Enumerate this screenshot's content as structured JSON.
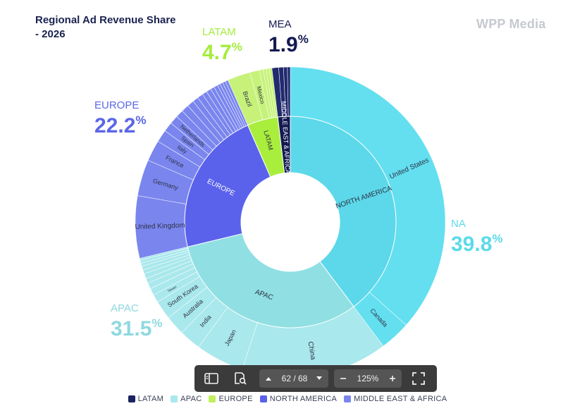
{
  "header": {
    "title": "Regional Ad Revenue Share - 2026",
    "brand": "WPP Media"
  },
  "chart_data": {
    "type": "sunburst",
    "regions": [
      {
        "name": "NORTH AMERICA",
        "label": "NA",
        "percent_text": "39.8%",
        "share": 39.8,
        "color": "#63dff0",
        "children": [
          {
            "name": "United States",
            "share": 36.6
          },
          {
            "name": "Canada",
            "share": 3.2
          }
        ]
      },
      {
        "name": "APAC",
        "label": "APAC",
        "percent_text": "31.5%",
        "share": 31.5,
        "color": "#a9e8ec",
        "children": [
          {
            "name": "China",
            "share": 14.8
          },
          {
            "name": "Japan",
            "share": 4.9
          },
          {
            "name": "India",
            "share": 2.2
          },
          {
            "name": "Australia",
            "share": 2.0
          },
          {
            "name": "South Korea",
            "share": 1.9
          },
          {
            "name": "Taiwan",
            "share": 0.8
          },
          {
            "name": "",
            "share": 0.7
          },
          {
            "name": "",
            "share": 0.6
          },
          {
            "name": "",
            "share": 0.5
          },
          {
            "name": "",
            "share": 0.5
          },
          {
            "name": "",
            "share": 0.4
          },
          {
            "name": "",
            "share": 0.4
          },
          {
            "name": "",
            "share": 0.3
          },
          {
            "name": "",
            "share": 0.3
          },
          {
            "name": "",
            "share": 0.2
          }
        ]
      },
      {
        "name": "EUROPE",
        "label": "EUROPE",
        "percent_text": "22.2%",
        "share": 22.2,
        "color": "#7a86ee",
        "children": [
          {
            "name": "United Kingdom",
            "share": 6.5
          },
          {
            "name": "Germany",
            "share": 3.8
          },
          {
            "name": "France",
            "share": 2.2
          },
          {
            "name": "Italy",
            "share": 1.3
          },
          {
            "name": "Spain",
            "share": 1.0
          },
          {
            "name": "Netherlands",
            "share": 0.9
          },
          {
            "name": "",
            "share": 0.8
          },
          {
            "name": "",
            "share": 0.8
          },
          {
            "name": "",
            "share": 0.7
          },
          {
            "name": "",
            "share": 0.6
          },
          {
            "name": "",
            "share": 0.6
          },
          {
            "name": "",
            "share": 0.5
          },
          {
            "name": "",
            "share": 0.5
          },
          {
            "name": "",
            "share": 0.4
          },
          {
            "name": "",
            "share": 0.4
          },
          {
            "name": "",
            "share": 0.3
          },
          {
            "name": "",
            "share": 0.3
          },
          {
            "name": "",
            "share": 0.3
          },
          {
            "name": "",
            "share": 0.3
          }
        ]
      },
      {
        "name": "LATAM",
        "label": "LATAM",
        "percent_text": "4.7%",
        "share": 4.7,
        "color": "#c6f27a",
        "children": [
          {
            "name": "Brazil",
            "share": 2.4
          },
          {
            "name": "Mexico",
            "share": 1.0
          },
          {
            "name": "",
            "share": 0.4
          },
          {
            "name": "",
            "share": 0.3
          },
          {
            "name": "",
            "share": 0.3
          },
          {
            "name": "",
            "share": 0.3
          }
        ]
      },
      {
        "name": "MIDDLE EAST & AFRICA",
        "label": "MEA",
        "percent_text": "1.9%",
        "share": 1.9,
        "color": "#222a6e",
        "children": [
          {
            "name": "",
            "share": 0.7
          },
          {
            "name": "",
            "share": 0.5
          },
          {
            "name": "",
            "share": 0.4
          },
          {
            "name": "",
            "share": 0.3
          }
        ]
      }
    ],
    "inner_colors": {
      "NORTH AMERICA": "#5cd8ea",
      "APAC": "#90dfe3",
      "EUROPE": "#5a62ec",
      "LATAM": "#a9ee3c",
      "MIDDLE EAST & AFRICA": "#141a52"
    },
    "callout_colors": {
      "NORTH AMERICA": "#5cdaea",
      "APAC": "#8fd9e0",
      "EUROPE": "#5b67e6",
      "LATAM": "#a5ec3e",
      "MIDDLE EAST & AFRICA": "#141a52"
    },
    "legend": [
      {
        "label": "LATAM",
        "color": "#1a2360"
      },
      {
        "label": "APAC",
        "color": "#a9e8ec"
      },
      {
        "label": "EUROPE",
        "color": "#c0ef5a"
      },
      {
        "label": "NORTH AMERICA",
        "color": "#5a62ec"
      },
      {
        "label": "MIDDLE EAST & AFRICA",
        "color": "#7a86ee"
      }
    ]
  },
  "viewer": {
    "page_current": "62",
    "page_total": "68",
    "page_text": "62 / 68",
    "zoom": "125%",
    "icons": [
      "sidebar-icon",
      "search-document-icon",
      "chevron-up-icon",
      "chevron-down-icon",
      "minus-icon",
      "plus-icon",
      "fullscreen-icon"
    ]
  }
}
